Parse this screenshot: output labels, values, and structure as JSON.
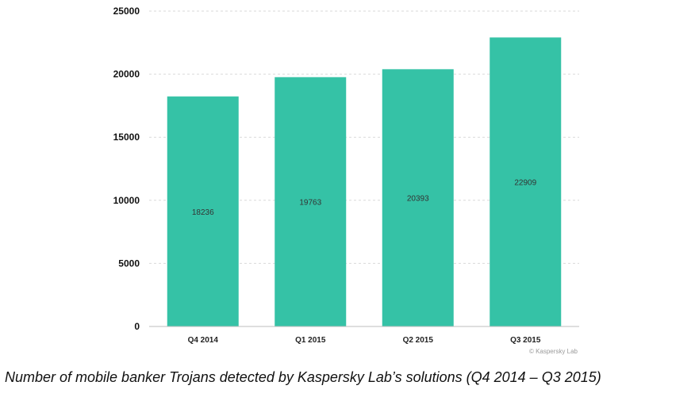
{
  "chart_data": {
    "type": "bar",
    "title": "",
    "xlabel": "",
    "ylabel": "",
    "categories": [
      "Q4 2014",
      "Q1 2015",
      "Q2 2015",
      "Q3 2015"
    ],
    "values": [
      18236,
      19763,
      20393,
      22909
    ],
    "data_labels": [
      "18236",
      "19763",
      "20393",
      "22909"
    ],
    "ylim": [
      0,
      25000
    ],
    "yticks": [
      0,
      5000,
      10000,
      15000,
      20000,
      25000
    ],
    "ytick_labels": [
      "0",
      "5000",
      "10000",
      "15000",
      "20000",
      "25000"
    ],
    "grid": true,
    "bar_color": "#35c2a6",
    "grid_color": "#d9d9d9"
  },
  "watermark": "© Kaspersky Lab",
  "caption": "Number of mobile banker Trojans detected by Kaspersky Lab’s solutions (Q4 2014 – Q3 2015)"
}
